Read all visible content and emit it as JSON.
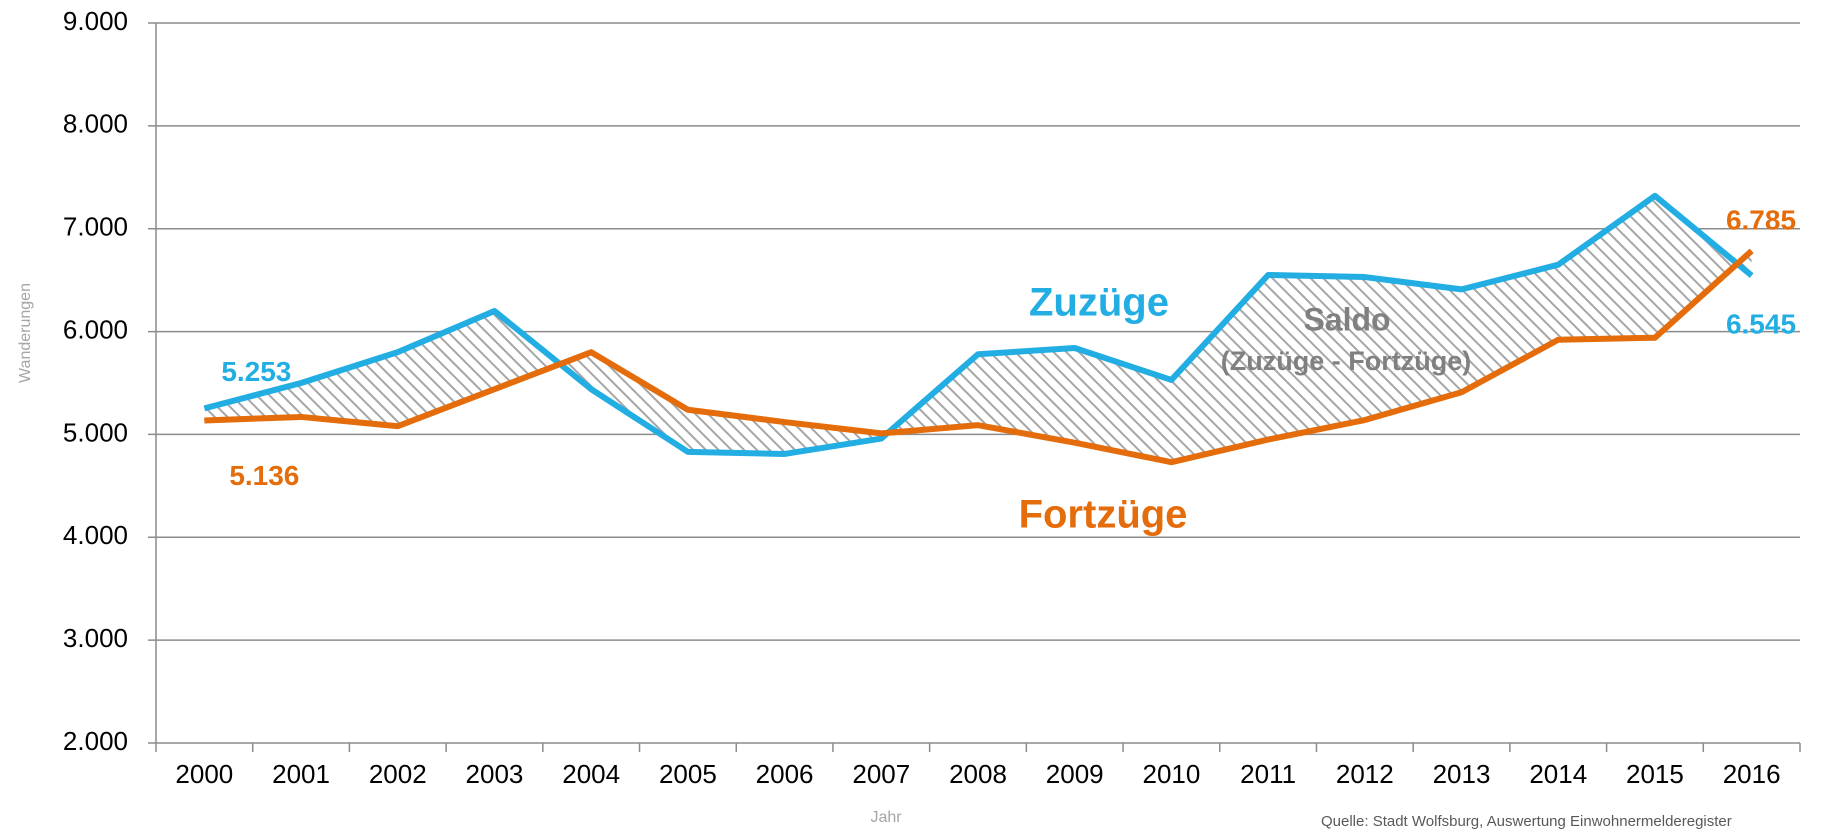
{
  "chart_data": {
    "type": "line",
    "categories": [
      "2000",
      "2001",
      "2002",
      "2003",
      "2004",
      "2005",
      "2006",
      "2007",
      "2008",
      "2009",
      "2010",
      "2011",
      "2012",
      "2013",
      "2014",
      "2015",
      "2016"
    ],
    "series": [
      {
        "name": "Zuzüge",
        "color": "#22aee3",
        "values": [
          5253,
          5500,
          5800,
          6200,
          5440,
          4830,
          4810,
          4960,
          5780,
          5840,
          5530,
          6550,
          6530,
          6410,
          6650,
          7320,
          6545
        ],
        "value_labels": [
          "5.253",
          null,
          null,
          null,
          null,
          null,
          null,
          null,
          null,
          null,
          null,
          null,
          null,
          null,
          null,
          null,
          "6.545"
        ]
      },
      {
        "name": "Fortzüge",
        "color": "#e46c0a",
        "values": [
          5136,
          5170,
          5080,
          5440,
          5800,
          5240,
          5120,
          5010,
          5090,
          4920,
          4730,
          4950,
          5140,
          5410,
          5920,
          5940,
          6785
        ],
        "value_labels": [
          "5.136",
          null,
          null,
          null,
          null,
          null,
          null,
          null,
          null,
          null,
          null,
          null,
          null,
          null,
          null,
          null,
          "6.785"
        ]
      }
    ],
    "ylim": [
      2000,
      9000
    ],
    "yticks": [
      {
        "value": 2000,
        "label": "2.000"
      },
      {
        "value": 3000,
        "label": "3.000"
      },
      {
        "value": 4000,
        "label": "4.000"
      },
      {
        "value": 5000,
        "label": "5.000"
      },
      {
        "value": 6000,
        "label": "6.000"
      },
      {
        "value": 7000,
        "label": "7.000"
      },
      {
        "value": 8000,
        "label": "8.000"
      },
      {
        "value": 9000,
        "label": "9.000"
      }
    ],
    "grid": true,
    "xlabel": "Jahr",
    "ylabel": "Wanderungen",
    "annotations": {
      "saldo": "Saldo",
      "saldo_formula": "(Zuzüge - Fortzüge)",
      "source": "Quelle: Stadt Wolfsburg, Auswertung Einwohnermelderegister"
    }
  }
}
